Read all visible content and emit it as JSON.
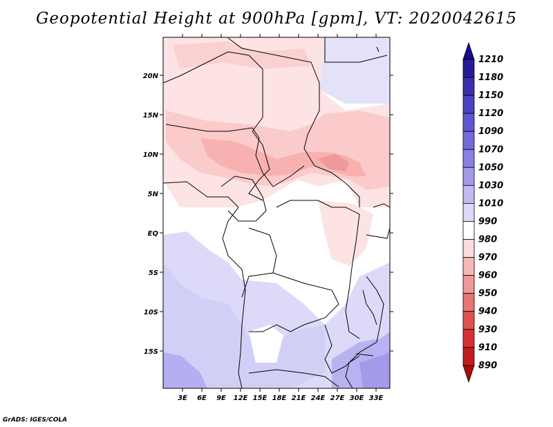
{
  "title": "Geopotential Height at 900hPa [gpm], VT: 2020042615",
  "credit": "GrADS: IGES/COLA",
  "map": {
    "lat_labels": [
      "20N",
      "15N",
      "10N",
      "5N",
      "EQ",
      "5S",
      "10S",
      "15S"
    ],
    "lon_labels": [
      "3E",
      "6E",
      "9E",
      "12E",
      "15E",
      "18E",
      "21E",
      "24E",
      "27E",
      "30E",
      "33E"
    ]
  },
  "colorbar": {
    "labels": [
      "1210",
      "1180",
      "1150",
      "1120",
      "1090",
      "1070",
      "1050",
      "1030",
      "1010",
      "990",
      "980",
      "970",
      "960",
      "950",
      "940",
      "930",
      "910",
      "890"
    ],
    "colors": [
      "#1a0a8c",
      "#261a9a",
      "#3a2fad",
      "#4c43bf",
      "#5f57cf",
      "#7469db",
      "#8a7fe3",
      "#a39ae9",
      "#c0baf1",
      "#dcdaf8",
      "#ffffff",
      "#fbdcdc",
      "#f6b8b8",
      "#f09797",
      "#e87474",
      "#e05252",
      "#d53333",
      "#c21d1d",
      "#a80b0b"
    ]
  }
}
